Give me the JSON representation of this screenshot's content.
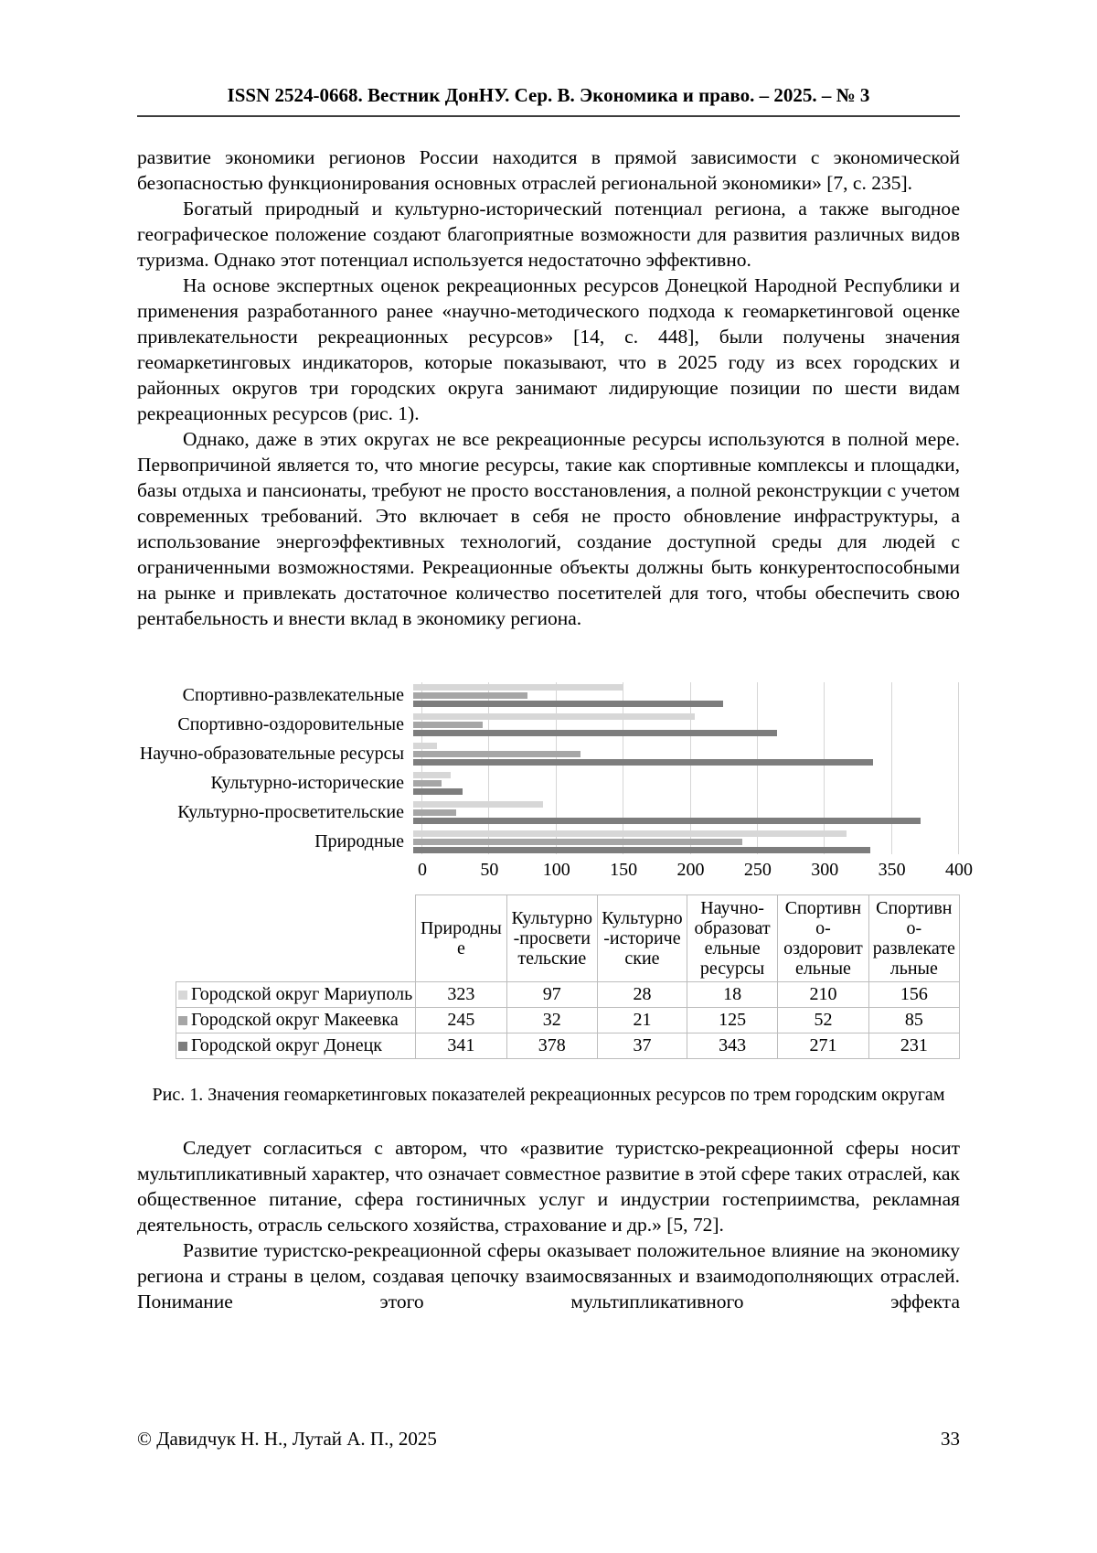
{
  "header": {
    "journal_line": "ISSN 2524-0668. Вестник ДонНУ. Сер. В. Экономика и право. – 2025. – № 3"
  },
  "paragraphs": [
    {
      "indent": false,
      "text": "развитие экономики регионов России находится в прямой зависимости с экономической безопасностью функционирования основных отраслей региональной экономики» [7, с. 235]."
    },
    {
      "indent": true,
      "text": "Богатый природный и культурно-исторический потенциал региона, а также выгодное географическое положение создают благоприятные возможности для развития различных видов туризма. Однако этот потенциал используется недостаточно эффективно."
    },
    {
      "indent": true,
      "text": "На основе экспертных оценок рекреационных ресурсов Донецкой Народной Республики и применения разработанного ранее «научно-методического подхода к геомаркетинговой оценке привлекательности рекреационных ресурсов» [14, с. 448], были получены значения геомаркетинговых индикаторов, которые показывают, что в 2025 году из всех городских и районных округов три городских округа занимают лидирующие позиции по шести видам рекреационных ресурсов (рис. 1)."
    },
    {
      "indent": true,
      "text": "Однако, даже в этих округах не все рекреационные ресурсы используются в полной мере. Первопричиной является то, что многие ресурсы, такие как спортивные комплексы и площадки, базы отдыха и пансионаты, требуют не просто восстановления, а полной реконструкции с учетом современных требований. Это включает в себя не просто обновление инфраструктуры, а использование энергоэффективных технологий, создание доступной среды для людей с ограниченными возможностями. Рекреационные объекты должны быть конкурентоспособными на рынке и привлекать достаточное количество посетителей для того, чтобы обеспечить свою рентабельность и внести вклад в экономику региона."
    }
  ],
  "figure": {
    "caption": "Рис. 1. Значения геомаркетинговых показателей рекреационных ресурсов по трем городским округам"
  },
  "chart_data": {
    "type": "bar",
    "orientation": "horizontal",
    "title": "",
    "xlabel": "",
    "ylabel": "",
    "categories": [
      "Спортивно-развлекательные",
      "Спортивно-оздоровительные",
      "Научно-образовательные ресурсы",
      "Культурно-исторические",
      "Культурно-просветительские",
      "Природные"
    ],
    "series": [
      {
        "name": "Городской округ Мариуполь",
        "color": "#d7d7d7",
        "values": [
          156,
          210,
          18,
          28,
          97,
          323
        ]
      },
      {
        "name": "Городской округ Макеевка",
        "color": "#a6a6a6",
        "values": [
          85,
          52,
          125,
          21,
          32,
          245
        ]
      },
      {
        "name": "Городской округ Донецк",
        "color": "#7d7d7d",
        "values": [
          231,
          271,
          343,
          37,
          378,
          341
        ]
      }
    ],
    "xlim": [
      0,
      400
    ],
    "xticks": [
      0,
      50,
      100,
      150,
      200,
      250,
      300,
      350,
      400
    ],
    "grid": true,
    "legend_position": "table-left",
    "table": {
      "column_headers": [
        "Природные",
        "Культурно-просветительские",
        "Культурно-исторические",
        "Научно-образовательные ресурсы",
        "Спортивно-оздоровительные",
        "Спортивно-развлекательные"
      ],
      "rows": [
        {
          "label": "Городской округ Мариуполь",
          "values": [
            323,
            97,
            28,
            18,
            210,
            156
          ]
        },
        {
          "label": "Городской округ Макеевка",
          "values": [
            245,
            32,
            21,
            125,
            52,
            85
          ]
        },
        {
          "label": "Городской округ Донецк",
          "values": [
            341,
            378,
            37,
            343,
            271,
            231
          ]
        }
      ]
    }
  },
  "after_figure_paragraphs": [
    {
      "indent": true,
      "justify_last": false,
      "text": "Следует согласиться с автором, что «развитие туристско-рекреационной сферы носит мультипликативный характер, что означает совместное развитие в этой сфере таких отраслей, как общественное питание, сфера гостиничных услуг и индустрии гостеприимства, рекламная деятельность, отрасль сельского хозяйства, страхование и др.» [5, 72]."
    },
    {
      "indent": true,
      "justify_last": true,
      "text": "Развитие туристско-рекреационной сферы оказывает положительное влияние на экономику региона и страны в целом, создавая цепочку взаимосвязанных и взаимодополняющих отраслей. Понимание этого мультипликативного эффекта"
    }
  ],
  "footer": {
    "copyright": "© Давидчук Н. Н., Лутай А. П., 2025",
    "page_number": "33"
  }
}
